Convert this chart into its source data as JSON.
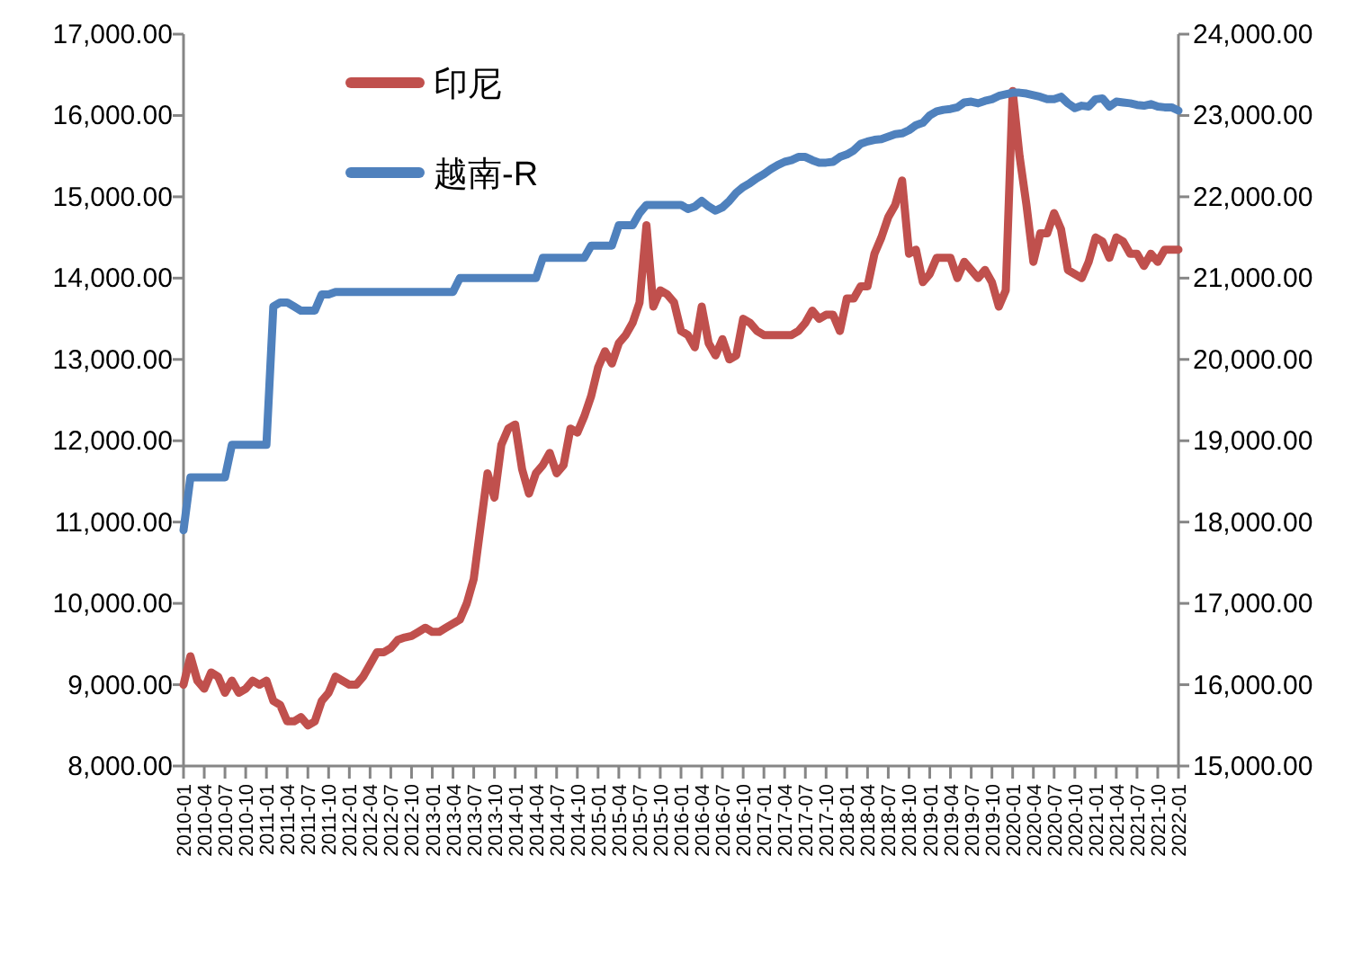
{
  "chart_data": {
    "type": "line",
    "legend": "top left",
    "categories": [
      "2010-01",
      null,
      null,
      "2010-04",
      null,
      null,
      "2010-07",
      null,
      null,
      "2010-10",
      null,
      null,
      "2011-01",
      null,
      null,
      "2011-04",
      null,
      null,
      "2011-07",
      null,
      null,
      "2011-10",
      null,
      null,
      "2012-01",
      null,
      null,
      "2012-04",
      null,
      null,
      "2012-07",
      null,
      null,
      "2012-10",
      null,
      null,
      "2013-01",
      null,
      null,
      "2013-04",
      null,
      null,
      "2013-07",
      null,
      null,
      "2013-10",
      null,
      null,
      "2014-01",
      null,
      null,
      "2014-04",
      null,
      null,
      "2014-07",
      null,
      null,
      "2014-10",
      null,
      null,
      "2015-01",
      null,
      null,
      "2015-04",
      null,
      null,
      "2015-07",
      null,
      null,
      "2015-10",
      null,
      null,
      "2016-01",
      null,
      null,
      "2016-04",
      null,
      null,
      "2016-07",
      null,
      null,
      "2016-10",
      null,
      null,
      "2017-01",
      null,
      null,
      "2017-04",
      null,
      null,
      "2017-07",
      null,
      null,
      "2017-10",
      null,
      null,
      "2018-01",
      null,
      null,
      "2018-04",
      null,
      null,
      "2018-07",
      null,
      null,
      "2018-10",
      null,
      null,
      "2019-01",
      null,
      null,
      "2019-04",
      null,
      null,
      "2019-07",
      null,
      null,
      "2019-10",
      null,
      null,
      "2020-01",
      null,
      null,
      "2020-04",
      null,
      null,
      "2020-07",
      null,
      null,
      "2020-10",
      null,
      null,
      "2021-01",
      null,
      null,
      "2021-04",
      null,
      null,
      "2021-07",
      null,
      null,
      "2021-10",
      null,
      null,
      "2022-01"
    ],
    "ylim": [
      8000,
      17000
    ],
    "yticks": [
      {
        "value": 8000,
        "label": "8,000.00"
      },
      {
        "value": 9000,
        "label": "9,000.00"
      },
      {
        "value": 10000,
        "label": "10,000.00"
      },
      {
        "value": 11000,
        "label": "11,000.00"
      },
      {
        "value": 12000,
        "label": "12,000.00"
      },
      {
        "value": 13000,
        "label": "13,000.00"
      },
      {
        "value": 14000,
        "label": "14,000.00"
      },
      {
        "value": 15000,
        "label": "15,000.00"
      },
      {
        "value": 16000,
        "label": "16,000.00"
      },
      {
        "value": 17000,
        "label": "17,000.00"
      }
    ],
    "y2lim": [
      15000,
      24000
    ],
    "y2ticks": [
      {
        "value": 15000,
        "label": "15,000.00"
      },
      {
        "value": 16000,
        "label": "16,000.00"
      },
      {
        "value": 17000,
        "label": "17,000.00"
      },
      {
        "value": 18000,
        "label": "18,000.00"
      },
      {
        "value": 19000,
        "label": "19,000.00"
      },
      {
        "value": 20000,
        "label": "20,000.00"
      },
      {
        "value": 21000,
        "label": "21,000.00"
      },
      {
        "value": 22000,
        "label": "22,000.00"
      },
      {
        "value": 23000,
        "label": "23,000.00"
      },
      {
        "value": 24000,
        "label": "24,000.00"
      }
    ],
    "series": [
      {
        "name": "印尼",
        "color": "#c0504d",
        "values": [
          9000,
          9350,
          9050,
          8950,
          9150,
          9100,
          8900,
          9050,
          8900,
          8950,
          9050,
          9000,
          9050,
          8800,
          8750,
          8550,
          8550,
          8600,
          8500,
          8550,
          8800,
          8900,
          9100,
          9050,
          9000,
          9000,
          9100,
          9250,
          9400,
          9400,
          9450,
          9550,
          9580,
          9600,
          9650,
          9700,
          9650,
          9650,
          9700,
          9750,
          9800,
          10000,
          10300,
          10950,
          11600,
          11300,
          11950,
          12150,
          12200,
          11650,
          11350,
          11600,
          11700,
          11850,
          11600,
          11700,
          12150,
          12100,
          12300,
          12550,
          12900,
          13100,
          12950,
          13200,
          13300,
          13450,
          13700,
          14650,
          13650,
          13850,
          13800,
          13700,
          13350,
          13300,
          13150,
          13650,
          13200,
          13050,
          13250,
          13000,
          13050,
          13500,
          13450,
          13350,
          13300,
          13300,
          13300,
          13300,
          13300,
          13350,
          13450,
          13600,
          13500,
          13550,
          13550,
          13350,
          13750,
          13750,
          13900,
          13900,
          14300,
          14500,
          14750,
          14900,
          15200,
          14300,
          14350,
          13950,
          14050,
          14250,
          14250,
          14250,
          14000,
          14200,
          14100,
          14000,
          14100,
          13950,
          13650,
          13850,
          16300,
          15500,
          14900,
          14200,
          14550,
          14550,
          14800,
          14600,
          14100,
          14050,
          14000,
          14200,
          14500,
          14450,
          14250,
          14500,
          14450,
          14300,
          14300,
          14150,
          14300,
          14200,
          14350,
          14350,
          14350
        ]
      },
      {
        "name": "越南-R",
        "color": "#4f81bd",
        "axis": "y2",
        "values": [
          17900,
          18550,
          18550,
          18550,
          18550,
          18550,
          18550,
          18950,
          18950,
          18950,
          18950,
          18950,
          18950,
          20650,
          20700,
          20700,
          20650,
          20600,
          20600,
          20600,
          20800,
          20800,
          20830,
          20830,
          20830,
          20830,
          20830,
          20830,
          20830,
          20830,
          20830,
          20830,
          20830,
          20830,
          20830,
          20830,
          20830,
          20830,
          20830,
          20830,
          21000,
          21000,
          21000,
          21000,
          21000,
          21000,
          21000,
          21000,
          21000,
          21000,
          21000,
          21000,
          21250,
          21250,
          21250,
          21250,
          21250,
          21250,
          21250,
          21400,
          21400,
          21400,
          21400,
          21650,
          21650,
          21650,
          21800,
          21900,
          21900,
          21900,
          21900,
          21900,
          21900,
          21850,
          21880,
          21950,
          21880,
          21830,
          21870,
          21950,
          22050,
          22120,
          22170,
          22230,
          22280,
          22340,
          22390,
          22430,
          22450,
          22490,
          22490,
          22450,
          22420,
          22420,
          22430,
          22490,
          22520,
          22570,
          22650,
          22680,
          22700,
          22710,
          22740,
          22770,
          22780,
          22820,
          22880,
          22910,
          23000,
          23050,
          23070,
          23080,
          23100,
          23160,
          23170,
          23150,
          23180,
          23200,
          23240,
          23260,
          23280,
          23280,
          23270,
          23250,
          23230,
          23200,
          23200,
          23230,
          23150,
          23090,
          23120,
          23110,
          23200,
          23210,
          23110,
          23170,
          23160,
          23150,
          23130,
          23120,
          23140,
          23110,
          23100,
          23100,
          23060
        ]
      }
    ]
  }
}
